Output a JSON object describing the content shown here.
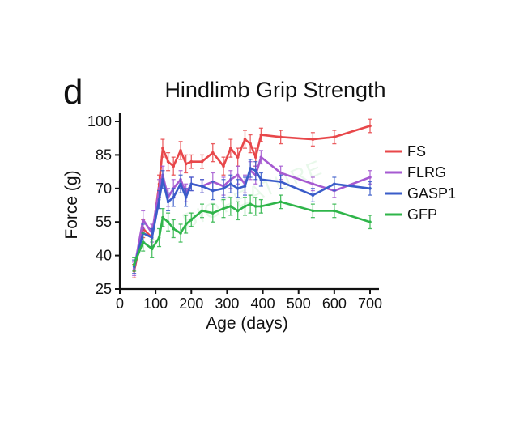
{
  "panel_label": "d",
  "watermark": "BIOFEATURE",
  "chart_data": {
    "type": "line",
    "title": "Hindlimb Grip Strength",
    "xlabel": "Age (days)",
    "ylabel": "Force (g)",
    "xlim": [
      0,
      720
    ],
    "ylim": [
      25,
      105
    ],
    "xticks": [
      0,
      100,
      200,
      300,
      400,
      500,
      600,
      700
    ],
    "yticks": [
      25,
      40,
      55,
      70,
      85,
      100
    ],
    "legend_position": "right",
    "grid": false,
    "series": [
      {
        "name": "FS",
        "color": "#e8474a",
        "x": [
          40,
          65,
          90,
          110,
          120,
          135,
          150,
          170,
          185,
          200,
          230,
          260,
          290,
          310,
          330,
          350,
          365,
          380,
          395,
          450,
          540,
          600,
          700
        ],
        "y": [
          33,
          52,
          48,
          72,
          88,
          82,
          80,
          87,
          81,
          82,
          82,
          86,
          80,
          88,
          84,
          92,
          90,
          84,
          94,
          93,
          92,
          93,
          98
        ],
        "err": [
          3,
          4,
          4,
          4,
          4,
          4,
          4,
          4,
          4,
          3,
          3,
          4,
          4,
          4,
          4,
          4,
          4,
          4,
          3,
          3,
          3,
          3,
          3
        ]
      },
      {
        "name": "FLRG",
        "color": "#a65ad1",
        "x": [
          40,
          65,
          90,
          110,
          120,
          135,
          150,
          170,
          185,
          200,
          230,
          260,
          290,
          310,
          330,
          350,
          365,
          380,
          395,
          450,
          540,
          600,
          700
        ],
        "y": [
          34,
          56,
          50,
          70,
          76,
          66,
          70,
          74,
          68,
          72,
          71,
          73,
          71,
          74,
          76,
          72,
          78,
          76,
          84,
          77,
          72,
          69,
          75
        ],
        "err": [
          3,
          4,
          4,
          4,
          4,
          4,
          4,
          4,
          4,
          3,
          3,
          4,
          4,
          4,
          4,
          4,
          4,
          4,
          3,
          3,
          3,
          3,
          3
        ]
      },
      {
        "name": "GASP1",
        "color": "#3a5cc9",
        "x": [
          40,
          65,
          90,
          110,
          120,
          135,
          150,
          170,
          185,
          200,
          230,
          260,
          290,
          310,
          330,
          350,
          365,
          380,
          395,
          450,
          540,
          600,
          700
        ],
        "y": [
          35,
          50,
          48,
          65,
          74,
          64,
          66,
          72,
          66,
          72,
          71,
          69,
          70,
          72,
          70,
          71,
          79,
          78,
          74,
          73,
          67,
          72,
          70
        ],
        "err": [
          3,
          4,
          4,
          4,
          4,
          4,
          4,
          4,
          4,
          3,
          3,
          4,
          4,
          4,
          4,
          4,
          4,
          4,
          3,
          3,
          3,
          3,
          3
        ]
      },
      {
        "name": "GFP",
        "color": "#2fb54a",
        "x": [
          40,
          65,
          90,
          110,
          120,
          135,
          150,
          170,
          185,
          200,
          230,
          260,
          290,
          310,
          330,
          350,
          365,
          380,
          395,
          450,
          540,
          600,
          700
        ],
        "y": [
          36,
          46,
          43,
          48,
          57,
          55,
          52,
          50,
          54,
          56,
          60,
          59,
          61,
          62,
          60,
          62,
          63,
          62,
          62,
          64,
          60,
          60,
          55
        ],
        "err": [
          3,
          4,
          4,
          4,
          4,
          4,
          4,
          4,
          4,
          3,
          3,
          4,
          4,
          4,
          4,
          4,
          4,
          4,
          3,
          3,
          3,
          3,
          3
        ]
      }
    ]
  }
}
